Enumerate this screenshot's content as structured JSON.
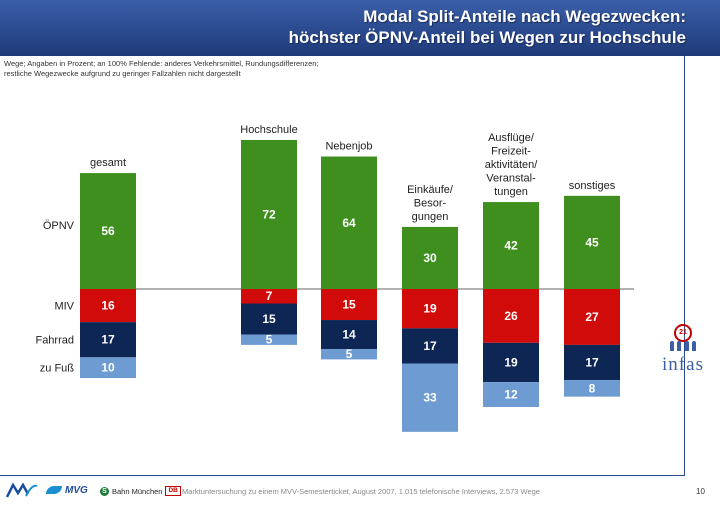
{
  "title": {
    "line1": "Modal Split-Anteile nach Wegezwecken:",
    "line2": "höchster ÖPNV-Anteil bei Wegen zur Hochschule"
  },
  "subtitle": {
    "line1": "Wege; Angaben in Prozent; an 100% Fehlende: anderes Verkehrsmittel, Rundungsdifferenzen;",
    "line2": "restliche Wegezwecke aufgrund zu geringer Fallzahlen nicht dargestellt"
  },
  "colors": {
    "oepnv": "#3f8f1f",
    "miv": "#d10a0a",
    "fahrrad": "#0e2654",
    "fuss": "#6e9bd2",
    "header": "#2b4a8f"
  },
  "chart_data": {
    "type": "bar",
    "stacked": true,
    "diverging": true,
    "baseline_note": "ÖPNV stacked above the baseline; MIV, Fahrrad and zu Fuß stacked below",
    "categories": [
      "gesamt",
      "Hochschule",
      "Nebenjob",
      "Einkäufe/ Besor- gungen",
      "Ausflüge/ Freizeit- aktivitäten/ Veranstal- tungen",
      "sonstiges"
    ],
    "category_label_lines": [
      [
        "gesamt"
      ],
      [
        "Hochschule"
      ],
      [
        "Nebenjob"
      ],
      [
        "Einkäufe/",
        "Besor-",
        "gungen"
      ],
      [
        "Ausflüge/",
        "Freizeit-",
        "aktivitäten/",
        "Veranstal-",
        "tungen"
      ],
      [
        "sonstiges"
      ]
    ],
    "series": [
      {
        "name": "ÖPNV",
        "key": "oepnv",
        "values": [
          56,
          72,
          64,
          30,
          42,
          45
        ]
      },
      {
        "name": "MIV",
        "key": "miv",
        "values": [
          16,
          7,
          15,
          19,
          26,
          27
        ]
      },
      {
        "name": "Fahrrad",
        "key": "fahrrad",
        "values": [
          17,
          15,
          14,
          17,
          19,
          17
        ]
      },
      {
        "name": "zu Fuß",
        "key": "fuss",
        "values": [
          10,
          5,
          5,
          33,
          12,
          8
        ]
      }
    ],
    "units": "Prozent"
  },
  "footer": {
    "source": "Marktuntersuchung zu einem MVV-Semesterticket, August 2007, 1.015 telefonische Interviews, 2.573 Wege",
    "page": "10",
    "logos": {
      "mvv": "MVV",
      "mvg": "MVG",
      "bahn": "Bahn München",
      "db": "DB",
      "infas": "infas",
      "infas_emblem": "21"
    }
  }
}
